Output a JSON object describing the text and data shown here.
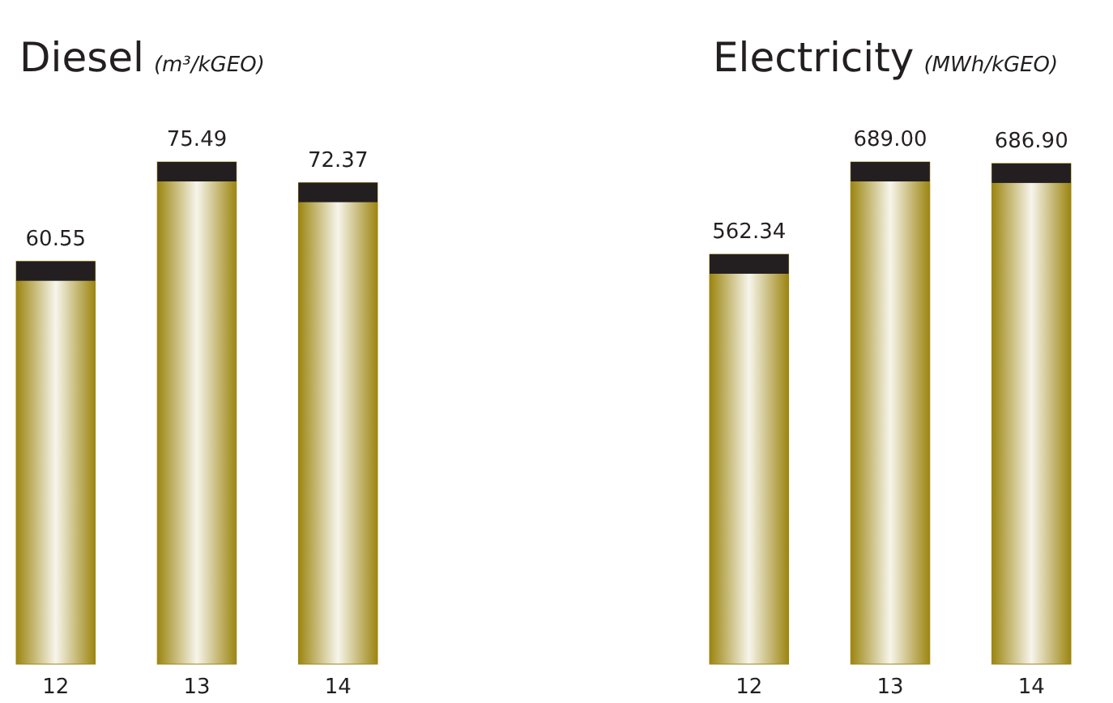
{
  "chart_data": [
    {
      "type": "bar",
      "title": "Diesel",
      "subtitle": "(m³/kGEO)",
      "categories": [
        "12",
        "13",
        "14"
      ],
      "values": [
        60.55,
        75.49,
        72.37
      ],
      "color": "#9c8510",
      "value_labels": [
        "60.55",
        "75.49",
        "72.37"
      ]
    },
    {
      "type": "bar",
      "title": "Electricity",
      "subtitle": "(MWh/kGEO)",
      "categories": [
        "12",
        "13",
        "14"
      ],
      "values": [
        562.34,
        689.0,
        686.9
      ],
      "color": "#9c8510",
      "value_labels": [
        "562.34",
        "689.00",
        "686.90"
      ]
    }
  ]
}
